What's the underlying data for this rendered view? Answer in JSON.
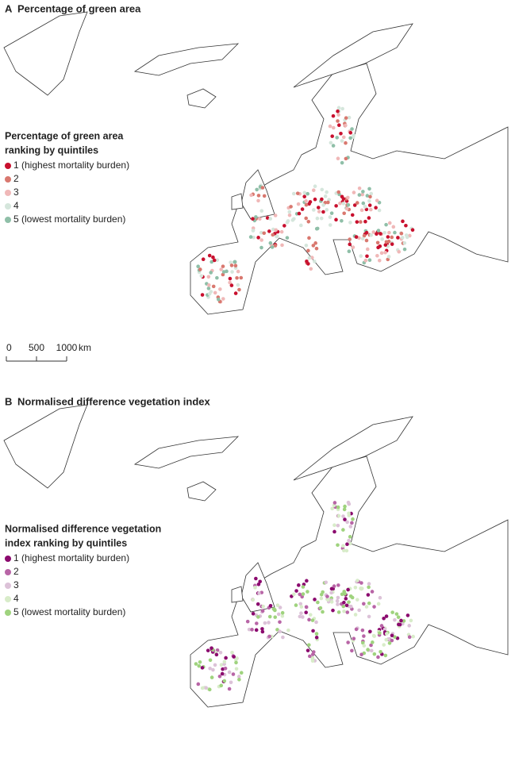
{
  "panels": [
    {
      "letter": "A",
      "title": "Percentage of green area",
      "legend": {
        "title": [
          "Percentage of green area",
          "ranking by quintiles"
        ],
        "items": [
          {
            "label": "1 (highest mortality burden)",
            "color": "#c8102e"
          },
          {
            "label": "2",
            "color": "#d9786f"
          },
          {
            "label": "3",
            "color": "#f0b8b8"
          },
          {
            "label": "4",
            "color": "#d5e6dc"
          },
          {
            "label": "5 (lowest mortality burden)",
            "color": "#8fbfa8"
          }
        ]
      }
    },
    {
      "letter": "B",
      "title": "Normalised difference vegetation index",
      "legend": {
        "title": [
          "Normalised difference vegetation",
          "index ranking by quintiles"
        ],
        "items": [
          {
            "label": "1 (highest mortality burden)",
            "color": "#8b0a6e"
          },
          {
            "label": "2",
            "color": "#b865a6"
          },
          {
            "label": "3",
            "color": "#dcc2d8"
          },
          {
            "label": "4",
            "color": "#d8ecc9"
          },
          {
            "label": "5 (lowest mortality burden)",
            "color": "#9fd37e"
          }
        ]
      }
    }
  ],
  "scale_bar": {
    "ticks": [
      "0",
      "500",
      "1000"
    ],
    "unit": "km"
  }
}
